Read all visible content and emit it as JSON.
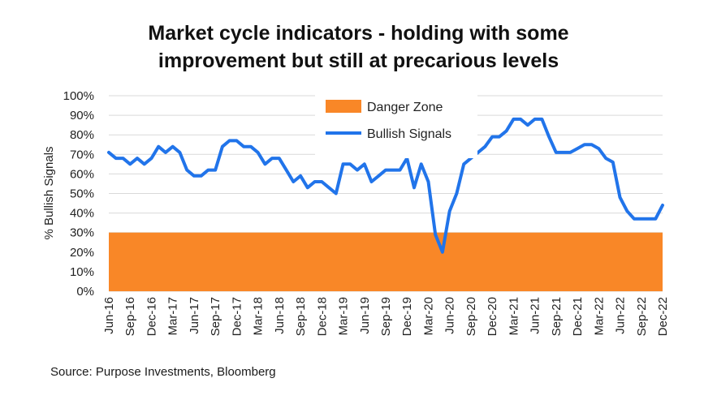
{
  "title_line1": "Market cycle indicators - holding with some",
  "title_line2": "improvement but still at precarious levels",
  "source": "Source: Purpose Investments, Bloomberg",
  "colors": {
    "danger": "#F98727",
    "line": "#2174EA",
    "grid": "#d9d9d9"
  },
  "chart_data": {
    "type": "line",
    "title": "Market cycle indicators - holding with some improvement but still at precarious levels",
    "ylabel": "% Bullish Signals",
    "xlabel": "",
    "ylim": [
      0,
      100
    ],
    "yticks": [
      "0%",
      "10%",
      "20%",
      "30%",
      "40%",
      "50%",
      "60%",
      "70%",
      "80%",
      "90%",
      "100%"
    ],
    "xticks": [
      "Jun-16",
      "Sep-16",
      "Dec-16",
      "Mar-17",
      "Jun-17",
      "Sep-17",
      "Dec-17",
      "Mar-18",
      "Jun-18",
      "Sep-18",
      "Dec-18",
      "Mar-19",
      "Jun-19",
      "Sep-19",
      "Dec-19",
      "Mar-20",
      "Jun-20",
      "Sep-20",
      "Dec-20",
      "Mar-21",
      "Jun-21",
      "Sep-21",
      "Dec-21",
      "Mar-22",
      "Jun-22",
      "Sep-22",
      "Dec-22"
    ],
    "legend_position": "top",
    "grid": true,
    "danger_zone": {
      "name": "Danger Zone",
      "from": 0,
      "to": 30
    },
    "series": [
      {
        "name": "Bullish Signals",
        "values": [
          71,
          68,
          68,
          65,
          68,
          65,
          68,
          74,
          71,
          74,
          71,
          62,
          59,
          59,
          62,
          62,
          74,
          77,
          77,
          74,
          74,
          71,
          65,
          68,
          68,
          62,
          56,
          59,
          53,
          56,
          56,
          53,
          50,
          65,
          65,
          62,
          65,
          56,
          59,
          62,
          62,
          62,
          68,
          53,
          65,
          56,
          29,
          20,
          41,
          50,
          65,
          68,
          71,
          74,
          79,
          79,
          82,
          88,
          88,
          85,
          88,
          88,
          79,
          71,
          71,
          71,
          73,
          75,
          75,
          73,
          68,
          66,
          48,
          41,
          37,
          37,
          37,
          37,
          44
        ]
      }
    ]
  }
}
